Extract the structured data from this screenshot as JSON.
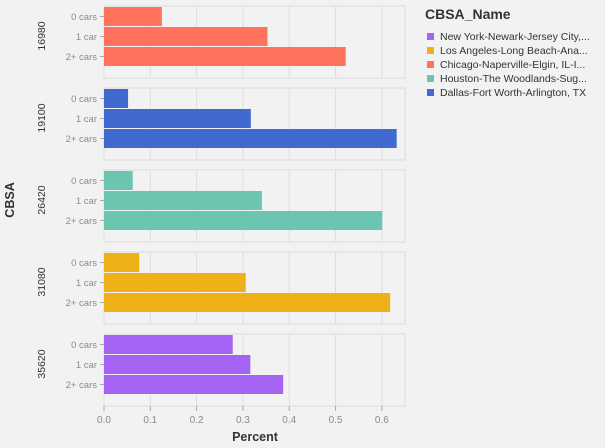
{
  "chart_data": {
    "type": "bar",
    "orientation": "horizontal",
    "facet_title": "CBSA",
    "xlabel": "Percent",
    "xlim": [
      0,
      0.65
    ],
    "x_ticks": [
      "0.0",
      "0.1",
      "0.2",
      "0.3",
      "0.4",
      "0.5",
      "0.6"
    ],
    "grid": true,
    "categories": [
      "0 cars",
      "1 car",
      "2+ cars"
    ],
    "facets": [
      {
        "name": "16980",
        "color": "#FF725C",
        "values": [
          0.125,
          0.353,
          0.522
        ]
      },
      {
        "name": "19100",
        "color": "#4269D0",
        "values": [
          0.052,
          0.317,
          0.632
        ]
      },
      {
        "name": "26420",
        "color": "#6CC5B0",
        "values": [
          0.062,
          0.341,
          0.601
        ]
      },
      {
        "name": "31080",
        "color": "#EFB118",
        "values": [
          0.076,
          0.306,
          0.618
        ]
      },
      {
        "name": "35620",
        "color": "#A463F2",
        "values": [
          0.278,
          0.316,
          0.387
        ]
      }
    ],
    "legend": {
      "title": "CBSA_Name",
      "placement": "top-right",
      "items": [
        {
          "label": "New York-Newark-Jersey City,...",
          "color": "#A463F2"
        },
        {
          "label": "Los Angeles-Long Beach-Ana...",
          "color": "#EFB118"
        },
        {
          "label": "Chicago-Naperville-Elgin, IL-I...",
          "color": "#FF725C"
        },
        {
          "label": "Houston-The Woodlands-Sug...",
          "color": "#6CC5B0"
        },
        {
          "label": "Dallas-Fort Worth-Arlington, TX",
          "color": "#4269D0"
        }
      ]
    }
  }
}
